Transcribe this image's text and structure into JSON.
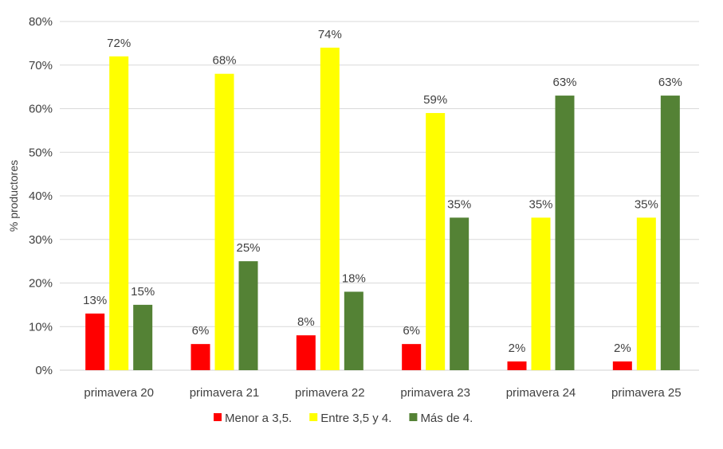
{
  "chart_data": {
    "type": "bar",
    "title": "",
    "xlabel": "",
    "ylabel": "% productores",
    "ylim": [
      0,
      80
    ],
    "yticks": [
      "0%",
      "10%",
      "20%",
      "30%",
      "40%",
      "50%",
      "60%",
      "70%",
      "80%"
    ],
    "grid": true,
    "legend_position": "bottom",
    "categories": [
      "primavera 20",
      "primavera 21",
      "primavera 22",
      "primavera 23",
      "primavera 24",
      "primavera 25"
    ],
    "series": [
      {
        "name": "Menor a 3,5.",
        "color": "#FF0000",
        "values": [
          13,
          6,
          8,
          6,
          2,
          2
        ],
        "labels": [
          "13%",
          "6%",
          "8%",
          "6%",
          "2%",
          "2%"
        ]
      },
      {
        "name": "Entre 3,5 y 4.",
        "color": "#FFFF00",
        "values": [
          72,
          68,
          74,
          59,
          35,
          35
        ],
        "labels": [
          "72%",
          "68%",
          "74%",
          "59%",
          "35%",
          "35%"
        ]
      },
      {
        "name": "Más de 4.",
        "color": "#548235",
        "values": [
          15,
          25,
          18,
          35,
          63,
          63
        ],
        "labels": [
          "15%",
          "25%",
          "18%",
          "35%",
          "63%",
          "63%"
        ]
      }
    ]
  }
}
